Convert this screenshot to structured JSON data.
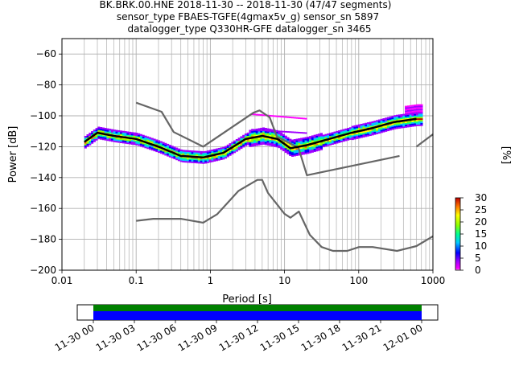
{
  "chart_data": {
    "type": "scatter",
    "title_lines": [
      "BK.BRK.00.HNE   2018-11-30 -- 2018-11-30  (47/47 segments)",
      "sensor_type FBAES-TGFE(4gmax5v_g) sensor_sn 5897",
      "datalogger_type Q330HR-GFE datalogger_sn 3465"
    ],
    "xlabel": "Period [s]",
    "ylabel": "Power [dB]",
    "x_scale": "log",
    "xlim": [
      0.01,
      1000
    ],
    "ylim": [
      -200,
      -50
    ],
    "x_ticks": [
      0.01,
      0.1,
      1,
      10,
      100,
      1000
    ],
    "x_tick_labels": [
      "0.01",
      "0.1",
      "1",
      "10",
      "100",
      "1000"
    ],
    "y_ticks": [
      -200,
      -180,
      -160,
      -140,
      -120,
      -100,
      -80,
      -60
    ],
    "y_tick_labels": [
      "−200",
      "−180",
      "−160",
      "−140",
      "−120",
      "−100",
      "−80",
      "−60"
    ],
    "grid": true,
    "noise_models": [
      {
        "name": "",
        "x": [
          0.1,
          0.22,
          0.32,
          0.8,
          3.8,
          4.6,
          6.3,
          7.9,
          15.4,
          20,
          354.8
        ],
        "y": [
          -91.5,
          -97.4,
          -110.5,
          -120,
          -98,
          -96.5,
          -101,
          -113.5,
          -120.7,
          -138.5,
          -126
        ]
      },
      {
        "name": "",
        "x": [
          0.1,
          0.17,
          0.4,
          0.8,
          1.24,
          2.4,
          4.3,
          5,
          6,
          10,
          12,
          15.6,
          21.9,
          31.6,
          45,
          70,
          101,
          154,
          328,
          600,
          1000
        ],
        "y": [
          -168,
          -166.7,
          -166.7,
          -169.2,
          -163.7,
          -148.6,
          -141.5,
          -141.5,
          -150,
          -163.5,
          -166,
          -162,
          -177.1,
          -185,
          -187.5,
          -187.5,
          -185,
          -185,
          -187.5,
          -184.4,
          -178
        ]
      },
      {
        "name": "",
        "x": [
          600,
          1000
        ],
        "y": [
          -120,
          -112
        ]
      }
    ],
    "mode_curve": {
      "x": [
        0.02,
        0.03,
        0.05,
        0.1,
        0.2,
        0.4,
        0.8,
        1.5,
        3,
        5,
        8,
        12,
        20,
        40,
        80,
        150,
        300,
        600
      ],
      "y": [
        -117,
        -111,
        -113,
        -115,
        -120,
        -126,
        -127,
        -124,
        -115,
        -113,
        -115,
        -121,
        -119,
        -115,
        -111,
        -108,
        -104,
        -102
      ]
    },
    "colorbar": {
      "label": "[%]",
      "range": [
        0,
        30
      ],
      "ticks": [
        0,
        5,
        10,
        15,
        20,
        25,
        30
      ],
      "tick_labels": [
        "0",
        "5",
        "10",
        "15",
        "20",
        "25",
        "30"
      ]
    },
    "timeline": {
      "tick_labels": [
        "11-30 00",
        "11-30 03",
        "11-30 06",
        "11-30 09",
        "11-30 12",
        "11-30 15",
        "11-30 18",
        "11-30 21",
        "12-01 00"
      ],
      "coverage_colors": [
        "#008000",
        "#0000ff"
      ]
    }
  },
  "colors": {
    "noise_model": "#666666",
    "mode_curve": "#000000",
    "grid": "#b0b0b0"
  }
}
